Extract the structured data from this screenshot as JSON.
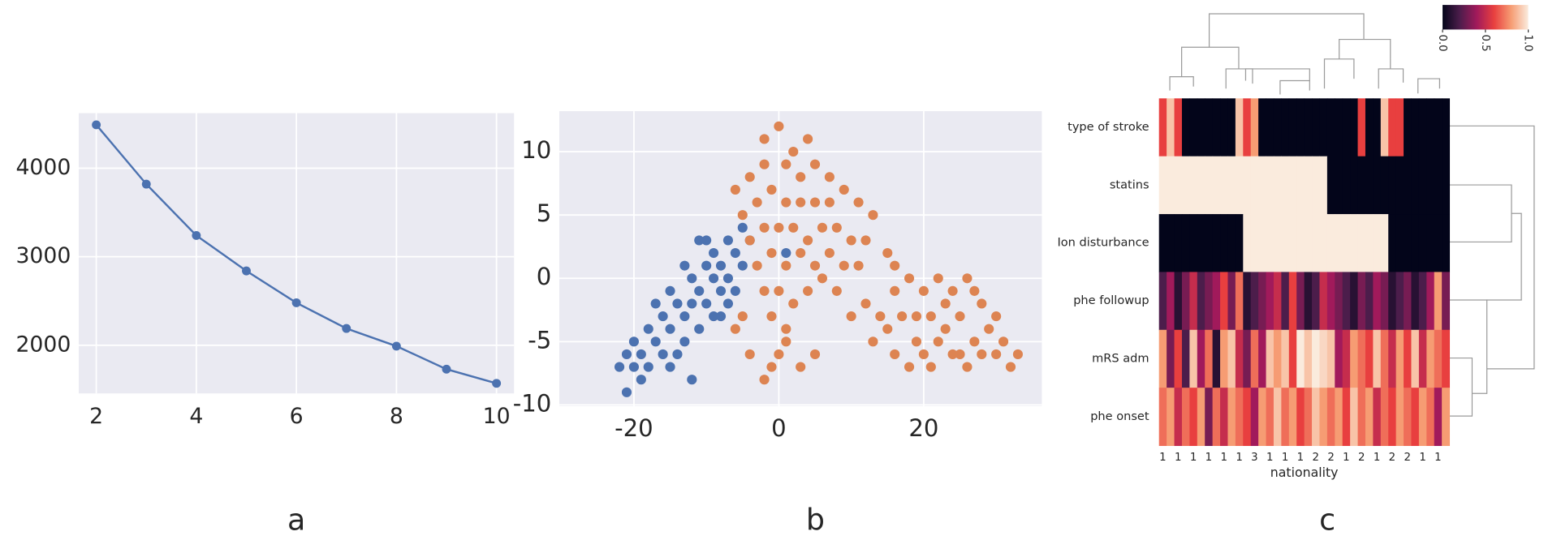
{
  "chart_data": [
    {
      "type": "line",
      "label": "a",
      "color": "#4c72b0",
      "grid": true,
      "x": [
        2,
        3,
        4,
        5,
        6,
        7,
        8,
        9,
        10
      ],
      "values": [
        4490,
        3820,
        3240,
        2840,
        2480,
        2190,
        1990,
        1730,
        1570
      ],
      "xlim": [
        1.65,
        10.35
      ],
      "xticks": [
        2,
        4,
        6,
        8,
        10
      ],
      "ylim": [
        1456,
        4622
      ],
      "yticks": [
        2000,
        3000,
        4000
      ]
    },
    {
      "type": "scatter",
      "label": "b",
      "grid": true,
      "xlim": [
        -30.3,
        36.3
      ],
      "xticks": [
        -20,
        0,
        20
      ],
      "ylim": [
        -10.1,
        13.2
      ],
      "yticks": [
        -10,
        -5,
        0,
        5,
        10
      ],
      "series": [
        {
          "color": "#4c72b0",
          "x": [
            -22,
            -21,
            -20,
            -19,
            -18,
            -19,
            -17,
            -16,
            -17,
            -15,
            -14,
            -15,
            -13,
            -13,
            -12,
            -12,
            -11,
            -11,
            -10,
            -10,
            -9,
            -9,
            -9,
            -8,
            -8,
            -7,
            -7,
            -6,
            -6,
            -5,
            -5,
            -10,
            -14,
            -16,
            -18,
            -21,
            -12,
            -13,
            -11,
            -4,
            1,
            -7,
            -15,
            -20,
            -8
          ],
          "values": [
            -7,
            -6,
            -5,
            -6,
            -4,
            -8,
            -5,
            -3,
            -2,
            -4,
            -6,
            -1,
            -3,
            -5,
            -2,
            0,
            -4,
            -1,
            1,
            -2,
            -3,
            0,
            2,
            -1,
            1,
            0,
            3,
            2,
            -1,
            1,
            4,
            3,
            -2,
            -6,
            -7,
            -9,
            -8,
            1,
            3,
            3,
            2,
            -2,
            -7,
            -7,
            -3
          ]
        },
        {
          "color": "#dd8452",
          "x": [
            0,
            -2,
            2,
            4,
            -6,
            -4,
            -2,
            1,
            3,
            5,
            7,
            -5,
            -3,
            -1,
            1,
            3,
            5,
            7,
            9,
            11,
            13,
            -4,
            -2,
            0,
            2,
            4,
            6,
            8,
            10,
            12,
            -3,
            -1,
            1,
            3,
            5,
            7,
            9,
            11,
            -2,
            0,
            2,
            4,
            6,
            8,
            -1,
            1,
            -5,
            -6,
            -4,
            0,
            1,
            3,
            -2,
            -1,
            5,
            15,
            16,
            10,
            12,
            14,
            16,
            18,
            20,
            22,
            24,
            26,
            28,
            30,
            13,
            15,
            17,
            19,
            21,
            23,
            25,
            27,
            29,
            31,
            16,
            18,
            20,
            22,
            24,
            26,
            28,
            30,
            32,
            19,
            23,
            27,
            25,
            21,
            33
          ],
          "values": [
            12,
            11,
            10,
            11,
            7,
            8,
            9,
            9,
            8,
            9,
            8,
            5,
            6,
            7,
            6,
            6,
            6,
            6,
            7,
            6,
            5,
            3,
            4,
            4,
            4,
            3,
            4,
            4,
            3,
            3,
            1,
            2,
            1,
            2,
            1,
            2,
            1,
            1,
            -1,
            -1,
            -2,
            -1,
            0,
            -1,
            -3,
            -4,
            -3,
            -4,
            -6,
            -6,
            -5,
            -7,
            -8,
            -7,
            -6,
            2,
            1,
            -3,
            -2,
            -3,
            -1,
            0,
            -1,
            0,
            -1,
            0,
            -2,
            -3,
            -5,
            -4,
            -3,
            -5,
            -3,
            -4,
            -3,
            -5,
            -4,
            -5,
            -6,
            -7,
            -6,
            -5,
            -6,
            -7,
            -6,
            -6,
            -7,
            -3,
            -2,
            -1,
            -6,
            -7,
            -6
          ]
        }
      ]
    },
    {
      "type": "heatmap",
      "label": "c",
      "xlabel": "nationality",
      "rows": [
        "type of stroke",
        "statins",
        "Ion disturbance",
        "phe followup",
        "mRS adm",
        "phe onset"
      ],
      "categories": [
        "1",
        null,
        "1",
        null,
        "1",
        null,
        "1",
        null,
        "1",
        null,
        "1",
        null,
        "3",
        null,
        "1",
        null,
        "1",
        null,
        "1",
        null,
        "2",
        null,
        "2",
        null,
        "1",
        null,
        "2",
        null,
        "1",
        null,
        "2",
        null,
        "2",
        null,
        "1",
        null,
        "1",
        null
      ],
      "colorscale": [
        "#03051a",
        "#4c1d4b",
        "#a11a5b",
        "#e83f3f",
        "#f69c73",
        "#faebdd"
      ],
      "clim": [
        0,
        1
      ],
      "cticks": [
        {
          "value": 0,
          "label": "0.0"
        },
        {
          "value": 0.5,
          "label": "0.5"
        },
        {
          "value": 1,
          "label": "1.0"
        }
      ],
      "values": [
        [
          0.6,
          0.9,
          0.6,
          0,
          0,
          0,
          0,
          0,
          0,
          0,
          0.9,
          0.6,
          0.8,
          0,
          0,
          0,
          0,
          0,
          0,
          0,
          0,
          0,
          0,
          0,
          0,
          0,
          0.6,
          0,
          0,
          0.9,
          0.6,
          0.6,
          0,
          0,
          0,
          0,
          0,
          0
        ],
        [
          1,
          1,
          1,
          1,
          1,
          1,
          1,
          1,
          1,
          1,
          1,
          1,
          1,
          1,
          1,
          1,
          1,
          1,
          1,
          1,
          1,
          1,
          0,
          0,
          0,
          0,
          0,
          0,
          0,
          0,
          0,
          0,
          0,
          0,
          0,
          0,
          0,
          0
        ],
        [
          0,
          0,
          0,
          0,
          0,
          0,
          0,
          0,
          0,
          0,
          0,
          1,
          1,
          1,
          1,
          1,
          1,
          1,
          1,
          1,
          1,
          1,
          1,
          1,
          1,
          1,
          1,
          1,
          1,
          1,
          0,
          0,
          0,
          0,
          0,
          0,
          0,
          0
        ],
        [
          0.2,
          0.4,
          0.1,
          0.3,
          0.5,
          0.2,
          0.3,
          0.4,
          0.6,
          0.3,
          0.7,
          0.1,
          0.2,
          0.3,
          0.4,
          0.5,
          0.2,
          0.6,
          0.3,
          0.1,
          0.2,
          0.5,
          0.4,
          0.3,
          0.2,
          0.1,
          0.3,
          0.2,
          0.4,
          0.3,
          0.1,
          0.2,
          0.3,
          0.1,
          0.2,
          0.4,
          0.8,
          0.3
        ],
        [
          0.8,
          0.3,
          0.6,
          0.2,
          0.9,
          0.4,
          0.7,
          0.1,
          0.8,
          0.9,
          0.5,
          0.3,
          0.7,
          0.4,
          0.9,
          0.8,
          0.9,
          0.6,
          1,
          0.9,
          1,
          0.95,
          0.9,
          0.4,
          0.5,
          0.8,
          0.7,
          0.6,
          0.9,
          0.7,
          0.5,
          0.8,
          0.6,
          0.9,
          0.5,
          0.8,
          0.7,
          0.6
        ],
        [
          0.7,
          0.8,
          0.5,
          0.7,
          0.6,
          0.8,
          0.3,
          0.7,
          0.5,
          0.8,
          0.7,
          0.6,
          0.4,
          0.8,
          0.7,
          0.9,
          0.7,
          0.8,
          0.6,
          0.7,
          0.9,
          0.8,
          0.7,
          0.8,
          0.6,
          0.9,
          0.7,
          0.8,
          0.5,
          0.7,
          0.6,
          0.8,
          0.7,
          0.6,
          0.8,
          0.7,
          0.4,
          0.8
        ]
      ]
    }
  ]
}
